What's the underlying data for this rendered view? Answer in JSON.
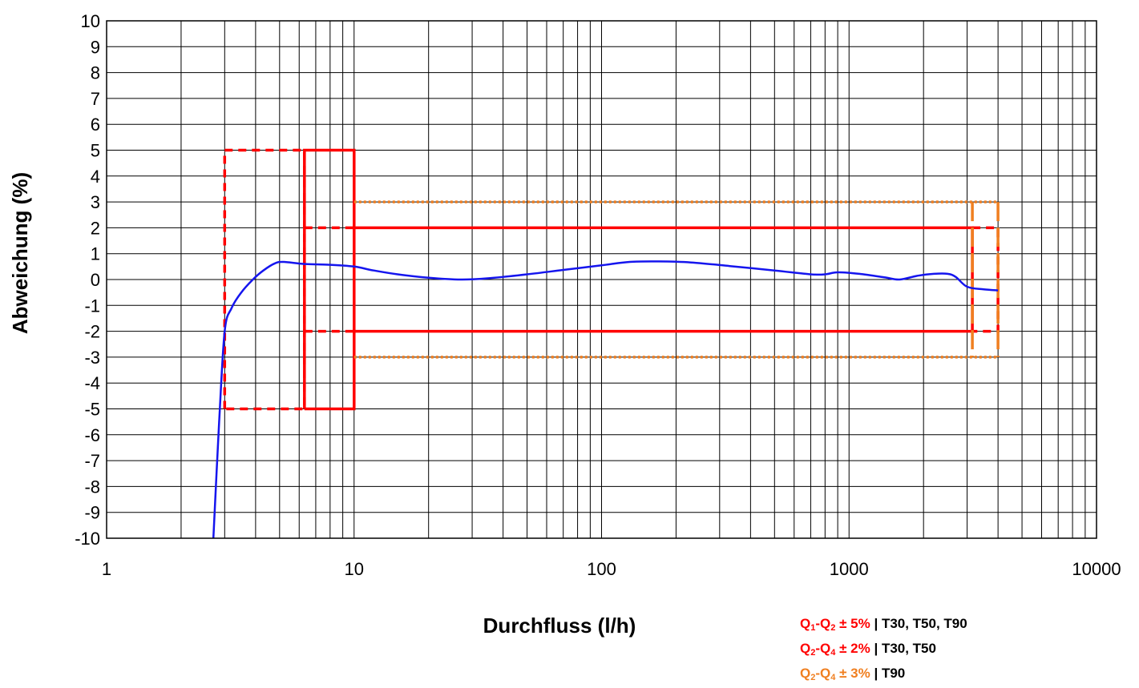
{
  "chart_data": {
    "type": "line",
    "xlabel": "Durchfluss (l/h)",
    "ylabel": "Abweichung (%)",
    "x_scale": "log",
    "xlim": [
      1,
      10000
    ],
    "ylim": [
      -10,
      10
    ],
    "x_ticks": [
      "1",
      "10",
      "100",
      "1000",
      "10000"
    ],
    "y_ticks": [
      "10",
      "9",
      "8",
      "7",
      "6",
      "5",
      "4",
      "3",
      "2",
      "1",
      "0",
      "-1",
      "-2",
      "-3",
      "-4",
      "-5",
      "-6",
      "-7",
      "-8",
      "-9",
      "-10"
    ],
    "grid": true,
    "curve": {
      "color": "#1515ee",
      "x": [
        2.7,
        2.85,
        3.0,
        3.2,
        3.5,
        3.9,
        4.3,
        4.8,
        5.2,
        6.3,
        8,
        10,
        12,
        15,
        20,
        27,
        35,
        50,
        70,
        100,
        130,
        170,
        230,
        330,
        500,
        700,
        800,
        900,
        1100,
        1400,
        1600,
        1900,
        2200,
        2500,
        2700,
        3000,
        3500,
        4000
      ],
      "y": [
        -10,
        -5.5,
        -2,
        -1.1,
        -0.5,
        0.0,
        0.35,
        0.63,
        0.68,
        0.6,
        0.57,
        0.5,
        0.35,
        0.2,
        0.07,
        0.0,
        0.05,
        0.2,
        0.37,
        0.55,
        0.68,
        0.7,
        0.66,
        0.52,
        0.35,
        0.2,
        0.2,
        0.28,
        0.22,
        0.08,
        0.0,
        0.15,
        0.22,
        0.22,
        0.1,
        -0.28,
        -0.38,
        -0.42
      ]
    },
    "tolerance_zones": [
      {
        "label": "Q1-Q2 ± 5% | T30, T50, T90",
        "color": "#ff0000",
        "style": "dashed",
        "points": [
          [
            3.0,
            -5
          ],
          [
            3.0,
            5
          ],
          [
            6.3,
            5
          ],
          [
            6.3,
            -5
          ],
          [
            3.0,
            -5
          ]
        ]
      },
      {
        "label": "Q1-Q2 ± 5% | T30, T50, T90",
        "color": "#ff0000",
        "style": "solid",
        "points": [
          [
            6.3,
            -5
          ],
          [
            6.3,
            5
          ],
          [
            10,
            5
          ],
          [
            10,
            -5
          ],
          [
            6.3,
            -5
          ]
        ]
      },
      {
        "label": "Q2-Q4 ± 2% | T30, T50",
        "color": "#ff0000",
        "style": "solid",
        "points": [
          [
            10,
            2
          ],
          [
            3150,
            2
          ],
          [
            3150,
            -2
          ],
          [
            10,
            -2
          ]
        ]
      },
      {
        "label": "Q2-Q4 ± 2% | T30, T50",
        "color": "#ff0000",
        "style": "dashed",
        "points": [
          [
            6.3,
            2
          ],
          [
            10,
            2
          ]
        ]
      },
      {
        "label": "Q2-Q4 ± 2% | T30, T50",
        "color": "#ff0000",
        "style": "dashed",
        "points": [
          [
            6.3,
            -2
          ],
          [
            10,
            -2
          ]
        ]
      },
      {
        "label": "Q2-Q4 ± 2% | T30, T50",
        "color": "#ff0000",
        "style": "dashed",
        "points": [
          [
            3150,
            2
          ],
          [
            4000,
            2
          ],
          [
            4000,
            -2
          ],
          [
            3150,
            -2
          ]
        ]
      },
      {
        "label": "Q2-Q4 ± 3% | T90",
        "color": "#f07f20",
        "style": "dotted",
        "points": [
          [
            10,
            3
          ],
          [
            4000,
            3
          ]
        ]
      },
      {
        "label": "Q2-Q4 ± 3% | T90",
        "color": "#f07f20",
        "style": "dotted",
        "points": [
          [
            10,
            -3
          ],
          [
            4000,
            -3
          ]
        ]
      },
      {
        "label": "Q2-Q4 ± 3% | T90",
        "color": "#f07f20",
        "style": "longdash",
        "points": [
          [
            3150,
            3
          ],
          [
            3150,
            -3
          ]
        ]
      },
      {
        "label": "Q2-Q4 ± 3% | T90",
        "color": "#f07f20",
        "style": "longdash",
        "points": [
          [
            4000,
            3
          ],
          [
            4000,
            -3
          ]
        ]
      }
    ]
  },
  "legend": [
    {
      "q1": "Q",
      "s1": "1",
      "mid": "-Q",
      "s2": "2",
      "tol": " ± 5%",
      "sep": " | ",
      "temps": "T30, T50, T90",
      "color": "#ff0000"
    },
    {
      "q1": "Q",
      "s1": "2",
      "mid": "-Q",
      "s2": "4",
      "tol": " ± 2%",
      "sep": " | ",
      "temps": "T30, T50",
      "color": "#ff0000"
    },
    {
      "q1": "Q",
      "s1": "2",
      "mid": "-Q",
      "s2": "4",
      "tol": " ± 3%",
      "sep": " | ",
      "temps": "T90",
      "color": "#f07f20"
    }
  ]
}
